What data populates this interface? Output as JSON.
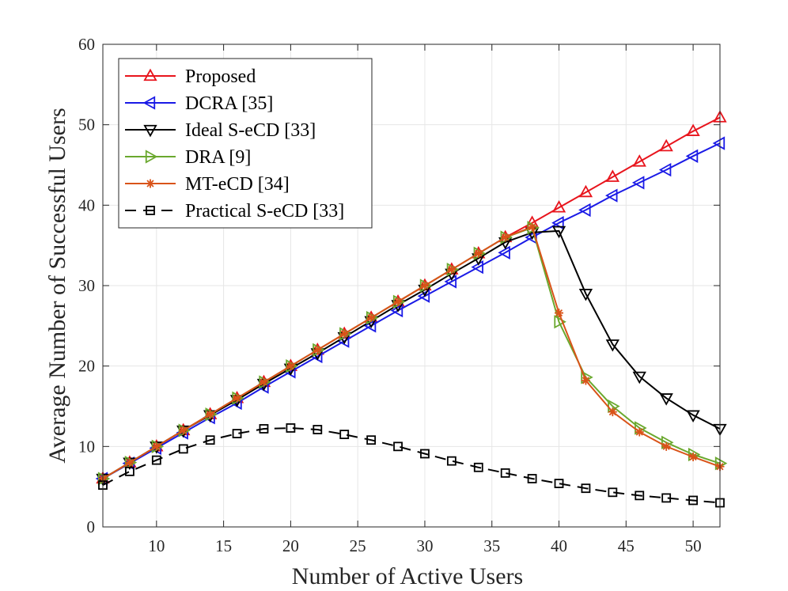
{
  "chart_data": {
    "type": "line",
    "title": "",
    "xlabel": "Number of Active Users",
    "ylabel": "Average Number of Successful Users",
    "xlim": [
      6,
      52
    ],
    "ylim": [
      0,
      60
    ],
    "xticks": [
      10,
      15,
      20,
      25,
      30,
      35,
      40,
      45,
      50
    ],
    "yticks": [
      0,
      10,
      20,
      30,
      40,
      50,
      60
    ],
    "grid": true,
    "legend_position": "top-left",
    "x": [
      6,
      8,
      10,
      12,
      14,
      16,
      18,
      20,
      22,
      24,
      26,
      28,
      30,
      32,
      34,
      36,
      38,
      40,
      42,
      44,
      46,
      48,
      50,
      52
    ],
    "series": [
      {
        "name": "Proposed",
        "color": "#e8141c",
        "marker": "triangle-up",
        "dash": false,
        "values": [
          6,
          8,
          10,
          12,
          14,
          16,
          18,
          20,
          22,
          24,
          26,
          28,
          30,
          32,
          34,
          36,
          37.8,
          39.7,
          41.6,
          43.5,
          45.4,
          47.3,
          49.2,
          50.9
        ]
      },
      {
        "name": "DCRA [35]",
        "color": "#1a1ae6",
        "marker": "triangle-left",
        "dash": false,
        "values": [
          6,
          7.9,
          9.8,
          11.7,
          13.6,
          15.4,
          17.4,
          19.3,
          21.2,
          23.1,
          25,
          26.9,
          28.7,
          30.5,
          32.3,
          34.1,
          36,
          37.8,
          39.4,
          41.2,
          42.8,
          44.4,
          46.1,
          47.7
        ]
      },
      {
        "name": "Ideal S-eCD [33]",
        "color": "#000000",
        "marker": "triangle-down",
        "dash": false,
        "values": [
          6,
          8,
          10,
          12,
          13.9,
          15.8,
          17.8,
          19.7,
          21.6,
          23.6,
          25.6,
          27.6,
          29.5,
          31.5,
          33.4,
          35.4,
          36.6,
          36.8,
          29,
          22.7,
          18.7,
          16,
          13.9,
          12.2
        ]
      },
      {
        "name": "DRA [9]",
        "color": "#6aa82e",
        "marker": "triangle-right",
        "dash": false,
        "values": [
          6,
          8,
          10,
          12,
          14,
          16,
          18,
          20,
          22,
          24,
          26,
          28,
          30,
          32,
          34,
          36,
          37.2,
          25.5,
          18.6,
          15,
          12.3,
          10.5,
          9,
          7.9
        ]
      },
      {
        "name": "MT-eCD [34]",
        "color": "#d95319",
        "marker": "asterisk",
        "dash": false,
        "values": [
          6,
          8,
          10,
          12,
          14,
          16,
          18,
          20,
          22,
          24,
          26,
          28,
          30,
          32,
          34,
          36,
          37.3,
          26.6,
          18.2,
          14.3,
          11.8,
          10,
          8.7,
          7.5
        ]
      },
      {
        "name": "Practical S-eCD [33]",
        "color": "#000000",
        "marker": "square",
        "dash": true,
        "values": [
          5.2,
          6.9,
          8.3,
          9.7,
          10.8,
          11.6,
          12.2,
          12.3,
          12.1,
          11.5,
          10.8,
          10,
          9.1,
          8.2,
          7.4,
          6.7,
          6,
          5.4,
          4.8,
          4.3,
          3.9,
          3.6,
          3.3,
          3
        ]
      }
    ]
  }
}
